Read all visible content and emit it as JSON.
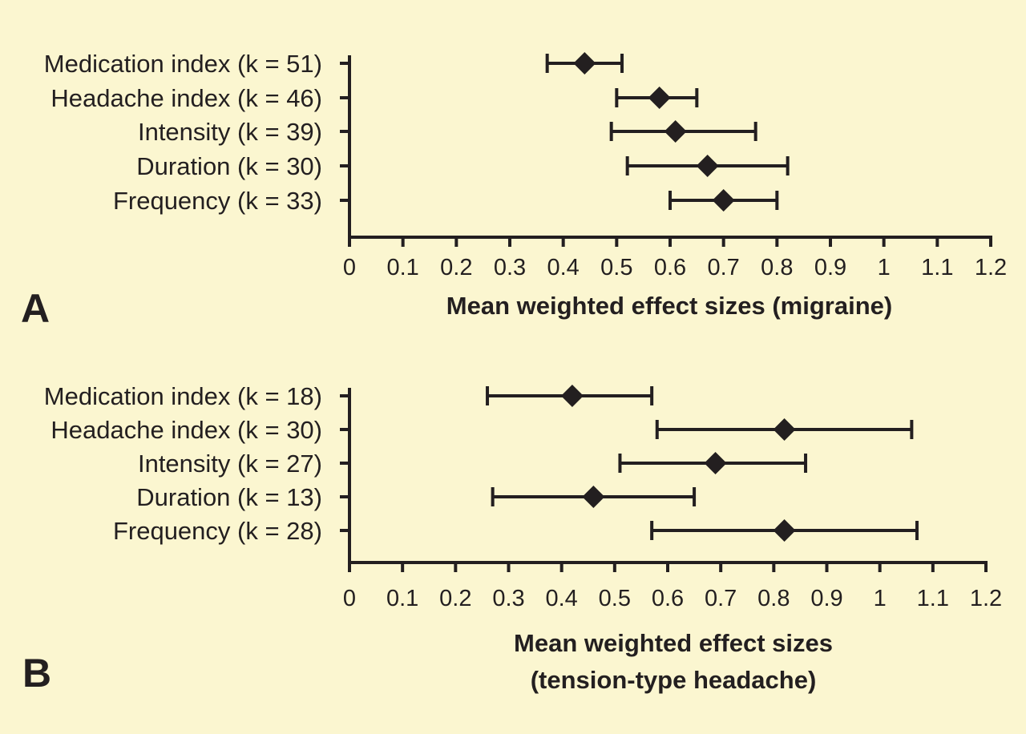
{
  "colors": {
    "background": "#fbf6d0",
    "ink": "#231f20"
  },
  "chart_data": [
    {
      "type": "forest",
      "panel_label": "A",
      "xlabel": [
        "Mean weighted effect sizes (migraine)"
      ],
      "xlim": [
        0,
        1.2
      ],
      "x_ticks": [
        "0",
        "0.1",
        "0.2",
        "0.3",
        "0.4",
        "0.5",
        "0.6",
        "0.7",
        "0.8",
        "0.9",
        "1",
        "1.1",
        "1.2"
      ],
      "grid": false,
      "legend": "none",
      "categories": [
        "Medication index (k = 51)",
        "Headache index (k = 46)",
        "Intensity (k = 39)",
        "Duration (k = 30)",
        "Frequency (k = 33)"
      ],
      "estimates": [
        0.44,
        0.58,
        0.61,
        0.67,
        0.7
      ],
      "ci_low": [
        0.37,
        0.5,
        0.49,
        0.52,
        0.6
      ],
      "ci_high": [
        0.51,
        0.65,
        0.76,
        0.82,
        0.8
      ]
    },
    {
      "type": "forest",
      "panel_label": "B",
      "xlabel": [
        "Mean weighted effect sizes",
        "(tension-type headache)"
      ],
      "xlim": [
        0,
        1.2
      ],
      "x_ticks": [
        "0",
        "0.1",
        "0.2",
        "0.3",
        "0.4",
        "0.5",
        "0.6",
        "0.7",
        "0.8",
        "0.9",
        "1",
        "1.1",
        "1.2"
      ],
      "grid": false,
      "legend": "none",
      "categories": [
        "Medication index (k = 18)",
        "Headache index (k = 30)",
        "Intensity (k = 27)",
        "Duration (k = 13)",
        "Frequency (k = 28)"
      ],
      "estimates": [
        0.42,
        0.82,
        0.69,
        0.46,
        0.82
      ],
      "ci_low": [
        0.26,
        0.58,
        0.51,
        0.27,
        0.57
      ],
      "ci_high": [
        0.57,
        1.06,
        0.86,
        0.65,
        1.07
      ]
    }
  ]
}
